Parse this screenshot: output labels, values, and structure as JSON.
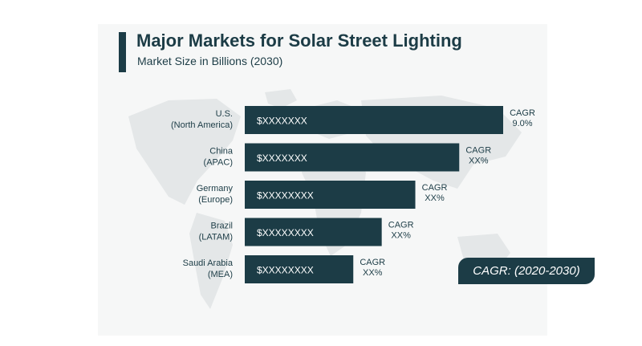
{
  "header": {
    "title": "Major Markets for Solar Street Lighting",
    "subtitle": "Market Size in Billions (2030)"
  },
  "badge": {
    "label": "CAGR: (2020-2030)"
  },
  "colors": {
    "bar": "#1c3c46",
    "text": "#1c3c46",
    "bar_label": "#ffffff",
    "map": "#e4e7e8"
  },
  "chart_data": {
    "type": "bar",
    "orientation": "horizontal",
    "title": "Major Markets for Solar Street Lighting",
    "subtitle": "Market Size in Billions (2030)",
    "categories": [
      [
        "U.S.",
        "(North America)"
      ],
      [
        "China",
        "(APAC)"
      ],
      [
        "Germany",
        "(Europe)"
      ],
      [
        "Brazil",
        "(LATAM)"
      ],
      [
        "Saudi Arabia",
        "(MEA)"
      ]
    ],
    "values": [
      100,
      83,
      66,
      53,
      42
    ],
    "value_labels": [
      "$XXXXXXX",
      "$XXXXXXX",
      "$XXXXXXXX",
      "$XXXXXXXX",
      "$XXXXXXXX"
    ],
    "annotations": [
      [
        "CAGR",
        "9.0%"
      ],
      [
        "CAGR",
        "XX%"
      ],
      [
        "CAGR",
        "XX%"
      ],
      [
        "CAGR",
        "XX%"
      ],
      [
        "CAGR",
        "XX%"
      ]
    ],
    "legend": "bottom-right badge",
    "grid": false
  }
}
